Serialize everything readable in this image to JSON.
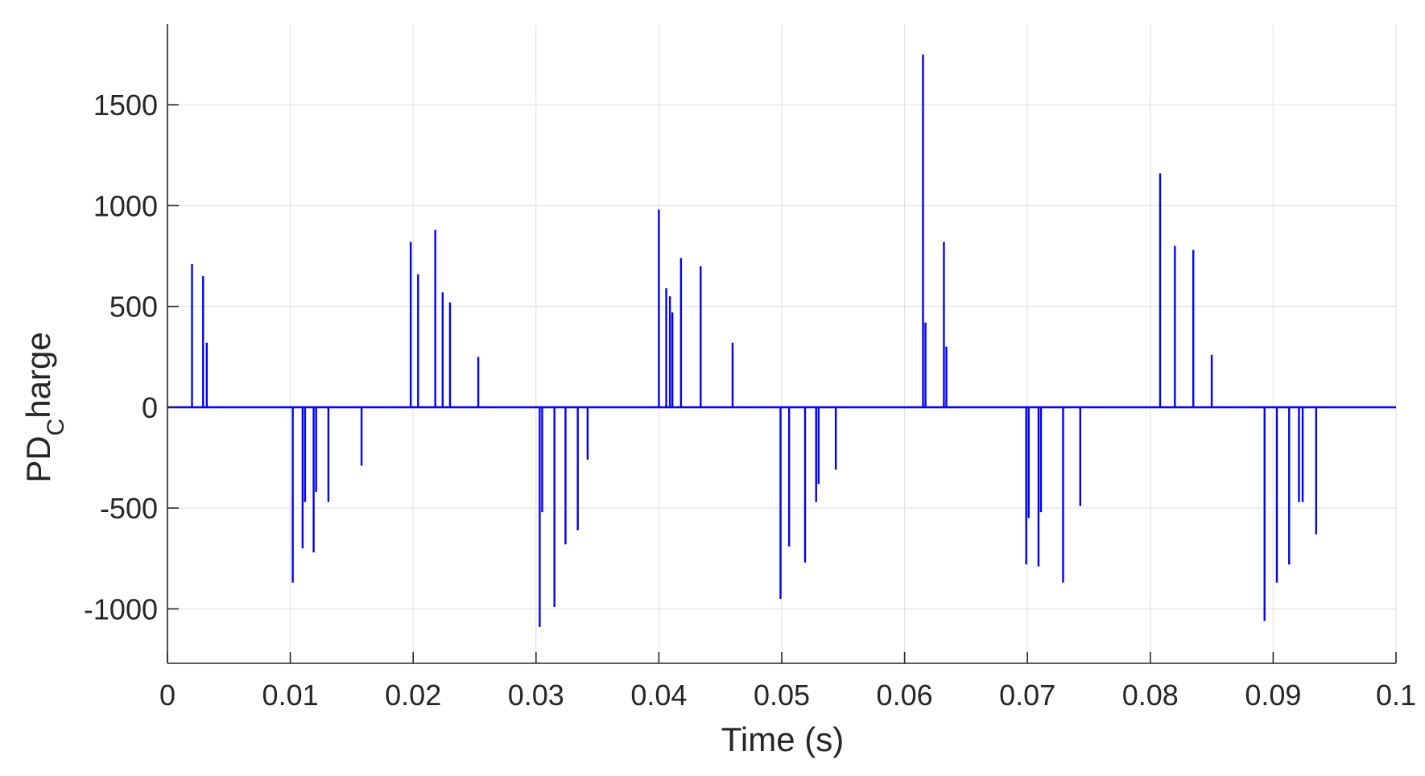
{
  "chart_data": {
    "type": "line",
    "title": "",
    "xlabel": "Time (s)",
    "ylabel": "PD_Charge",
    "ylabel_main": "PD",
    "ylabel_sub": "C",
    "ylabel_tail": "harge",
    "xlim": [
      0,
      0.1
    ],
    "ylim": [
      -1270,
      1900
    ],
    "grid": true,
    "x_ticks": [
      0,
      0.01,
      0.02,
      0.03,
      0.04,
      0.05,
      0.06,
      0.07,
      0.08,
      0.09,
      0.1
    ],
    "x_tick_labels": [
      "0",
      "0.01",
      "0.02",
      "0.03",
      "0.04",
      "0.05",
      "0.06",
      "0.07",
      "0.08",
      "0.09",
      "0.1"
    ],
    "y_ticks": [
      -1000,
      -500,
      0,
      500,
      1000,
      1500
    ],
    "y_tick_labels": [
      "-1000",
      "-500",
      "0",
      "500",
      "1000",
      "1500"
    ],
    "series": [
      {
        "color": "#0000ff",
        "pulses": [
          {
            "x": 0.002,
            "y": 710
          },
          {
            "x": 0.0029,
            "y": 650
          },
          {
            "x": 0.0032,
            "y": 320
          },
          {
            "x": 0.0102,
            "y": -870
          },
          {
            "x": 0.011,
            "y": -700
          },
          {
            "x": 0.0112,
            "y": -470
          },
          {
            "x": 0.0119,
            "y": -720
          },
          {
            "x": 0.0121,
            "y": -420
          },
          {
            "x": 0.0131,
            "y": -470
          },
          {
            "x": 0.0158,
            "y": -290
          },
          {
            "x": 0.0198,
            "y": 820
          },
          {
            "x": 0.0204,
            "y": 660
          },
          {
            "x": 0.0218,
            "y": 880
          },
          {
            "x": 0.0224,
            "y": 570
          },
          {
            "x": 0.023,
            "y": 520
          },
          {
            "x": 0.0253,
            "y": 250
          },
          {
            "x": 0.0303,
            "y": -1090
          },
          {
            "x": 0.0305,
            "y": -520
          },
          {
            "x": 0.0315,
            "y": -990
          },
          {
            "x": 0.0324,
            "y": -680
          },
          {
            "x": 0.0334,
            "y": -610
          },
          {
            "x": 0.0342,
            "y": -260
          },
          {
            "x": 0.04,
            "y": 980
          },
          {
            "x": 0.0406,
            "y": 590
          },
          {
            "x": 0.0409,
            "y": 550
          },
          {
            "x": 0.0411,
            "y": 470
          },
          {
            "x": 0.0418,
            "y": 740
          },
          {
            "x": 0.0434,
            "y": 700
          },
          {
            "x": 0.046,
            "y": 320
          },
          {
            "x": 0.0499,
            "y": -950
          },
          {
            "x": 0.0506,
            "y": -690
          },
          {
            "x": 0.0519,
            "y": -770
          },
          {
            "x": 0.0528,
            "y": -470
          },
          {
            "x": 0.053,
            "y": -380
          },
          {
            "x": 0.0544,
            "y": -310
          },
          {
            "x": 0.0615,
            "y": 1750
          },
          {
            "x": 0.0617,
            "y": 420
          },
          {
            "x": 0.0632,
            "y": 820
          },
          {
            "x": 0.0634,
            "y": 300
          },
          {
            "x": 0.0699,
            "y": -780
          },
          {
            "x": 0.0701,
            "y": -550
          },
          {
            "x": 0.0709,
            "y": -790
          },
          {
            "x": 0.0711,
            "y": -520
          },
          {
            "x": 0.0729,
            "y": -870
          },
          {
            "x": 0.0743,
            "y": -490
          },
          {
            "x": 0.0808,
            "y": 1160
          },
          {
            "x": 0.082,
            "y": 800
          },
          {
            "x": 0.0835,
            "y": 780
          },
          {
            "x": 0.085,
            "y": 260
          },
          {
            "x": 0.0893,
            "y": -1060
          },
          {
            "x": 0.0903,
            "y": -870
          },
          {
            "x": 0.0913,
            "y": -780
          },
          {
            "x": 0.0921,
            "y": -470
          },
          {
            "x": 0.0924,
            "y": -470
          },
          {
            "x": 0.0935,
            "y": -630
          }
        ]
      }
    ]
  }
}
